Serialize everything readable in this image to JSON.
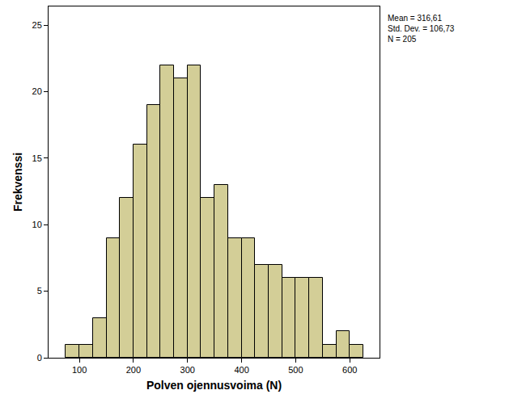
{
  "chart_data": {
    "type": "histogram",
    "x_label": "Polven ojennusvoima (N)",
    "y_label": "Frekvenssi",
    "bins": [
      75,
      100,
      125,
      150,
      175,
      200,
      225,
      250,
      275,
      300,
      325,
      350,
      375,
      400,
      425,
      450,
      475,
      500,
      525,
      550,
      575,
      600,
      625
    ],
    "values": [
      1,
      1,
      3,
      9,
      12,
      16,
      19,
      22,
      21,
      22,
      12,
      13,
      9,
      9,
      7,
      7,
      6,
      6,
      6,
      1,
      2,
      1
    ],
    "color": "#d3ce97",
    "xlim": [
      43,
      655
    ],
    "xticks": [
      100,
      200,
      300,
      400,
      500,
      600
    ],
    "ylim": [
      0,
      26.4
    ],
    "yticks": [
      0,
      5,
      10,
      15,
      20,
      25
    ],
    "grid": false,
    "annotations": [
      "Mean = 316,61",
      "Std. Dev. = 106,73",
      "N = 205"
    ]
  }
}
